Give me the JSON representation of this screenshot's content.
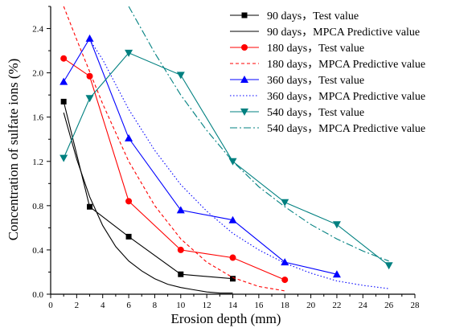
{
  "chart_data": {
    "type": "line",
    "title": "",
    "xlabel": "Erosion depth (mm)",
    "ylabel": "Concentration of sulfate ions (%)",
    "xlim": [
      0,
      28
    ],
    "ylim": [
      0,
      2.6
    ],
    "xticks": [
      0,
      2,
      4,
      6,
      8,
      10,
      12,
      14,
      16,
      18,
      20,
      22,
      24,
      26,
      28
    ],
    "yticks": [
      0.0,
      0.4,
      0.8,
      1.2,
      1.6,
      2.0,
      2.4
    ],
    "ytick_labels": [
      "0.0",
      "0.4",
      "0.8",
      "1.2",
      "1.6",
      "2.0",
      "2.4"
    ],
    "grid": false,
    "legend_position": "top-right",
    "series": [
      {
        "name": "90 days，Test value",
        "kind": "test",
        "color": "#000000",
        "marker": "square",
        "x": [
          1,
          3,
          6,
          10,
          14
        ],
        "y": [
          1.74,
          0.79,
          0.52,
          0.18,
          0.14
        ]
      },
      {
        "name": "90 days，MPCA Predictive value",
        "kind": "predictive",
        "color": "#000000",
        "dash": "solid",
        "x": [
          1,
          2,
          3,
          4,
          5,
          6,
          7,
          8,
          9,
          10,
          11,
          12,
          13,
          14
        ],
        "y": [
          1.64,
          1.22,
          0.88,
          0.62,
          0.43,
          0.3,
          0.21,
          0.14,
          0.09,
          0.06,
          0.04,
          0.02,
          0.01,
          0.01
        ]
      },
      {
        "name": "180 days，Test value",
        "kind": "test",
        "color": "#ff0000",
        "marker": "circle",
        "x": [
          1,
          3,
          6,
          10,
          14,
          18
        ],
        "y": [
          2.13,
          1.97,
          0.84,
          0.4,
          0.33,
          0.13
        ]
      },
      {
        "name": "180 days，MPCA Predictive value",
        "kind": "predictive",
        "color": "#ff0000",
        "dash": "dash",
        "x": [
          1,
          2,
          4,
          6,
          8,
          10,
          12,
          14,
          16,
          18
        ],
        "y": [
          2.6,
          2.3,
          1.72,
          1.2,
          0.8,
          0.5,
          0.29,
          0.15,
          0.07,
          0.03
        ]
      },
      {
        "name": "360 days，Test value",
        "kind": "test",
        "color": "#0000ff",
        "marker": "triangle-up",
        "x": [
          1,
          3,
          6,
          10,
          14,
          18,
          22
        ],
        "y": [
          1.92,
          2.31,
          1.41,
          0.76,
          0.67,
          0.29,
          0.18
        ]
      },
      {
        "name": "360 days，MPCA Predictive value",
        "kind": "predictive",
        "color": "#0000ff",
        "dash": "dot",
        "x": [
          3,
          4,
          6,
          8,
          10,
          12,
          14,
          16,
          18,
          20,
          22,
          24,
          26
        ],
        "y": [
          2.3,
          2.12,
          1.67,
          1.3,
          0.99,
          0.75,
          0.55,
          0.4,
          0.28,
          0.19,
          0.12,
          0.08,
          0.05
        ]
      },
      {
        "name": "540 days，Test value",
        "kind": "test",
        "color": "#008080",
        "marker": "triangle-down",
        "x": [
          1,
          3,
          6,
          10,
          14,
          18,
          22,
          26
        ],
        "y": [
          1.23,
          1.77,
          2.18,
          1.98,
          1.2,
          0.83,
          0.63,
          0.26
        ]
      },
      {
        "name": "540 days，MPCA Predictive value",
        "kind": "predictive",
        "color": "#008080",
        "dash": "dashdot",
        "x": [
          6,
          8,
          10,
          12,
          14,
          16,
          18,
          20,
          22,
          24,
          26
        ],
        "y": [
          2.6,
          2.18,
          1.8,
          1.48,
          1.2,
          0.97,
          0.79,
          0.63,
          0.5,
          0.39,
          0.3
        ]
      }
    ]
  }
}
